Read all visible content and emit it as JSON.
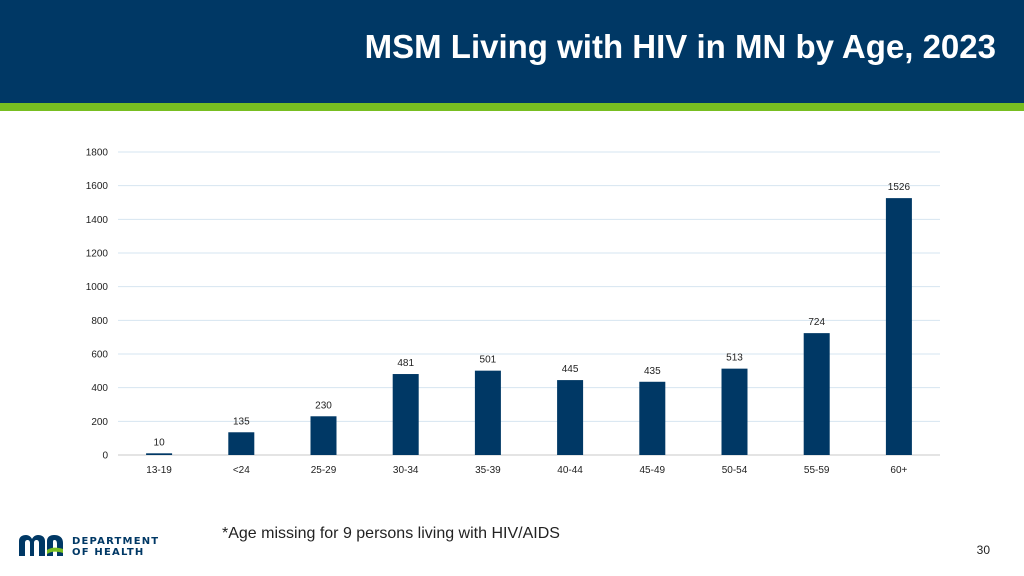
{
  "slide": {
    "title": "MSM Living with HIV in MN by Age, 2023",
    "footnote": "*Age missing for 9 persons living with HIV/AIDS",
    "page_number": "30",
    "logo": {
      "icon": "minnesota-state-mn-logo-icon",
      "line1": "DEPARTMENT",
      "line2": "OF HEALTH"
    },
    "colors": {
      "header": "#003865",
      "accent": "#78be21",
      "bar": "#003865"
    }
  },
  "chart_data": {
    "type": "bar",
    "title": "",
    "xlabel": "",
    "ylabel": "",
    "categories": [
      "13-19",
      "<24",
      "25-29",
      "30-34",
      "35-39",
      "40-44",
      "45-49",
      "50-54",
      "55-59",
      "60+"
    ],
    "values": [
      10,
      135,
      230,
      481,
      501,
      445,
      435,
      513,
      724,
      1526
    ],
    "ylim": [
      0,
      1800
    ],
    "yticks": [
      0,
      200,
      400,
      600,
      800,
      1000,
      1200,
      1400,
      1600,
      1800
    ],
    "data_labels": true,
    "grid": true,
    "legend": "none"
  }
}
